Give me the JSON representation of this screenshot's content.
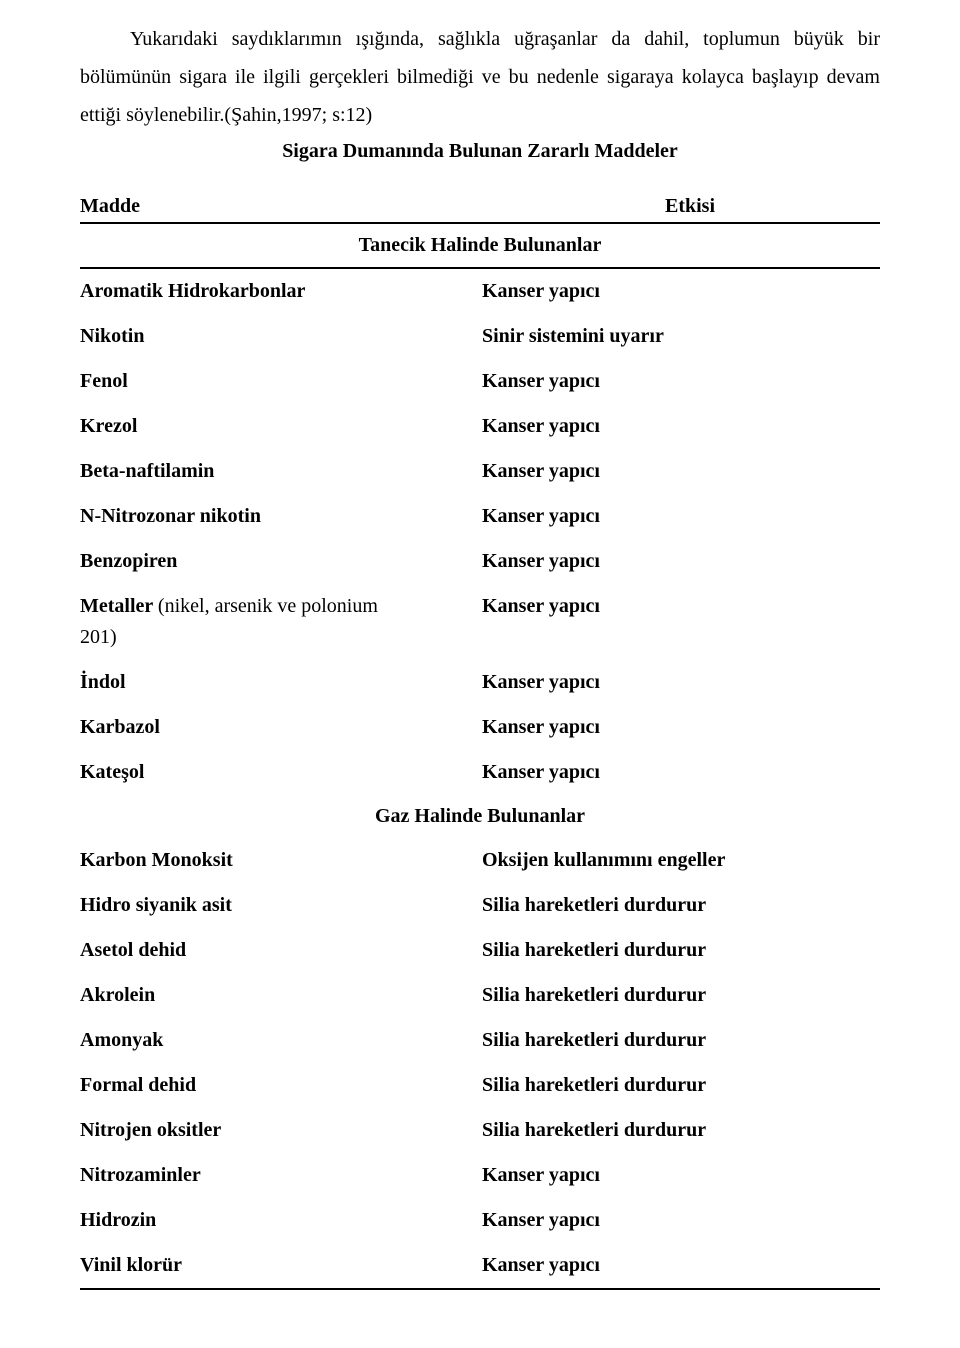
{
  "intro_paragraph": "Yukarıdaki saydıklarımın ışığında, sağlıkla uğraşanlar da dahil, toplumun büyük bir bölümünün sigara ile ilgili gerçekleri bilmediği ve bu nedenle sigaraya kolayca başlayıp devam ettiği söylenebilir.(Şahin,1997; s:12)",
  "table_title": "Sigara Dumanında Bulunan Zararlı Maddeler",
  "headers": {
    "madde": "Madde",
    "etkisi": "Etkisi"
  },
  "section1_title": "Tanecik  Halinde Bulunanlar",
  "section2_title": "Gaz Halinde Bulunanlar",
  "section1_rows": [
    {
      "madde": "Aromatik Hidrokarbonlar",
      "etkisi": "Kanser yapıcı"
    },
    {
      "madde": "Nikotin",
      "etkisi": "Sinir sistemini uyarır"
    },
    {
      "madde": "Fenol",
      "etkisi": "Kanser yapıcı"
    },
    {
      "madde": "Krezol",
      "etkisi": "Kanser yapıcı"
    },
    {
      "madde": "Beta-naftilamin",
      "etkisi": "Kanser yapıcı"
    },
    {
      "madde": "N-Nitrozonar nikotin",
      "etkisi": "Kanser yapıcı"
    },
    {
      "madde": "Benzopiren",
      "etkisi": "Kanser yapıcı"
    },
    {
      "madde_html": "<span>Metaller</span> <span class=\"light\">(nikel, arsenik ve polonium</span><br><span class=\"light\">201)</span>",
      "etkisi": "Kanser yapıcı"
    },
    {
      "madde": "İndol",
      "etkisi": "Kanser yapıcı"
    },
    {
      "madde": "Karbazol",
      "etkisi": "Kanser yapıcı"
    },
    {
      "madde": "Kateşol",
      "etkisi": "Kanser yapıcı"
    }
  ],
  "section2_rows": [
    {
      "madde": "Karbon Monoksit",
      "etkisi": "Oksijen kullanımını engeller"
    },
    {
      "madde": "Hidro siyanik asit",
      "etkisi": "Silia hareketleri durdurur"
    },
    {
      "madde": "Asetol dehid",
      "etkisi": "Silia hareketleri durdurur"
    },
    {
      "madde": "Akrolein",
      "etkisi": "Silia hareketleri durdurur"
    },
    {
      "madde": "Amonyak",
      "etkisi": "Silia hareketleri durdurur"
    },
    {
      "madde": "Formal dehid",
      "etkisi": "Silia hareketleri durdurur"
    },
    {
      "madde": "Nitrojen oksitler",
      "etkisi": "Silia hareketleri durdurur"
    },
    {
      "madde": "Nitrozaminler",
      "etkisi": "Kanser yapıcı"
    },
    {
      "madde": "Hidrozin",
      "etkisi": "Kanser yapıcı"
    },
    {
      "madde": "Vinil klorür",
      "etkisi": "Kanser yapıcı"
    }
  ]
}
